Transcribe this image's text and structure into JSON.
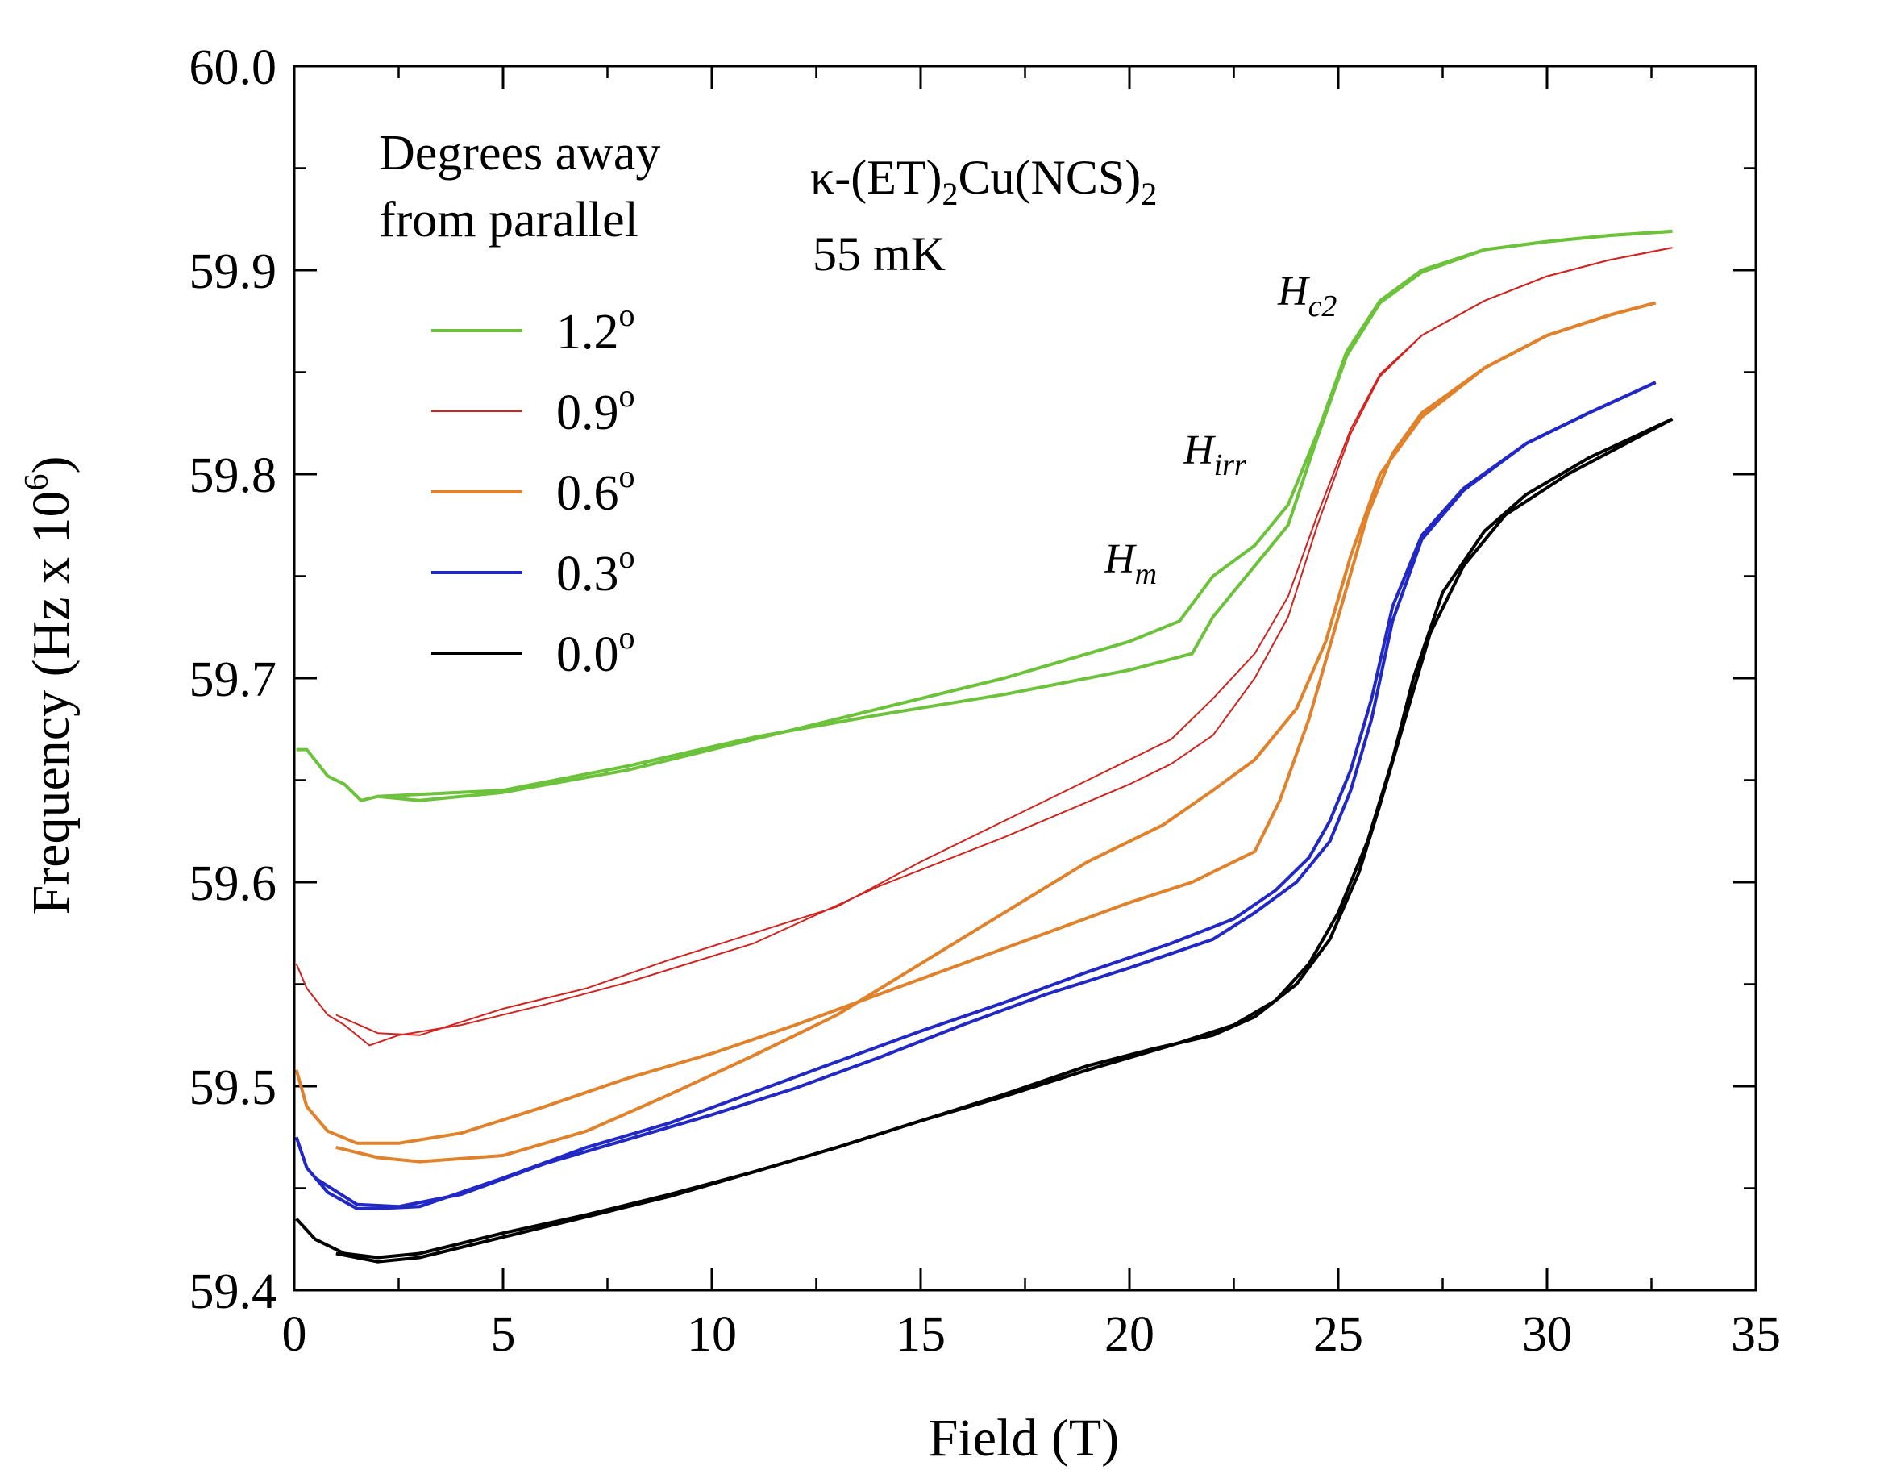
{
  "chart_data": {
    "type": "line",
    "xlabel": "Field (T)",
    "ylabel": "Frequency (Hz x 10",
    "ylabel_exp": "6",
    "ylabel_close": ")",
    "xlim": [
      0,
      35
    ],
    "ylim": [
      59.4,
      60.0
    ],
    "xticks": [
      0,
      5,
      10,
      15,
      20,
      25,
      30,
      35
    ],
    "xtick_labels": [
      "0",
      "5",
      "10",
      "15",
      "20",
      "25",
      "30",
      "35"
    ],
    "yticks": [
      59.4,
      59.5,
      59.6,
      59.7,
      59.8,
      59.9,
      60.0
    ],
    "ytick_labels": [
      "59.4",
      "59.5",
      "59.6",
      "59.7",
      "59.8",
      "59.9",
      "60.0"
    ],
    "grid": false,
    "legend": {
      "title_line1": "Degrees away",
      "title_line2": "from parallel",
      "placement": "top-left"
    },
    "annotations": {
      "compound_part1": "κ-(ET)",
      "compound_sub1": "2",
      "compound_part2": "Cu(NCS)",
      "compound_sub2": "2",
      "temperature": "55 mK",
      "hc2_main": "H",
      "hc2_sub": "c2",
      "hirr_main": "H",
      "hirr_sub": "irr",
      "hm_main": "H",
      "hm_sub": "m"
    },
    "series": [
      {
        "name": "1.2",
        "degree_sign": "o",
        "color": "#6cc23a",
        "up": [
          [
            0.05,
            59.665
          ],
          [
            0.3,
            59.665
          ],
          [
            0.8,
            59.652
          ],
          [
            1.2,
            59.648
          ],
          [
            1.6,
            59.64
          ],
          [
            2.0,
            59.642
          ],
          [
            3.0,
            59.64
          ],
          [
            5.0,
            59.644
          ],
          [
            8.0,
            59.655
          ],
          [
            11.0,
            59.67
          ],
          [
            14.0,
            59.685
          ],
          [
            17.0,
            59.7
          ],
          [
            20.0,
            59.718
          ],
          [
            21.2,
            59.728
          ],
          [
            22.0,
            59.75
          ],
          [
            23.0,
            59.765
          ],
          [
            23.8,
            59.785
          ],
          [
            24.5,
            59.82
          ],
          [
            25.2,
            59.86
          ],
          [
            26.0,
            59.885
          ],
          [
            27.0,
            59.9
          ],
          [
            28.5,
            59.91
          ],
          [
            30.0,
            59.914
          ],
          [
            31.5,
            59.917
          ],
          [
            33.0,
            59.919
          ]
        ],
        "down": [
          [
            2.0,
            59.642
          ],
          [
            5.0,
            59.645
          ],
          [
            8.0,
            59.657
          ],
          [
            11.0,
            59.671
          ],
          [
            14.0,
            59.682
          ],
          [
            17.0,
            59.692
          ],
          [
            20.0,
            59.704
          ],
          [
            21.5,
            59.712
          ],
          [
            22.0,
            59.73
          ],
          [
            23.0,
            59.755
          ],
          [
            23.8,
            59.775
          ],
          [
            24.5,
            59.818
          ],
          [
            25.2,
            59.858
          ],
          [
            26.0,
            59.884
          ],
          [
            27.0,
            59.899
          ],
          [
            28.5,
            59.91
          ],
          [
            30.0,
            59.914
          ],
          [
            31.5,
            59.917
          ],
          [
            33.0,
            59.919
          ]
        ]
      },
      {
        "name": "0.9",
        "degree_sign": "o",
        "color": "#cf2420",
        "up": [
          [
            0.05,
            59.56
          ],
          [
            0.3,
            59.548
          ],
          [
            0.8,
            59.535
          ],
          [
            1.2,
            59.53
          ],
          [
            1.8,
            59.52
          ],
          [
            2.5,
            59.525
          ],
          [
            4.0,
            59.53
          ],
          [
            6.0,
            59.54
          ],
          [
            8.0,
            59.551
          ],
          [
            11.0,
            59.57
          ],
          [
            14.0,
            59.598
          ],
          [
            17.0,
            59.622
          ],
          [
            20.0,
            59.648
          ],
          [
            21.0,
            59.658
          ],
          [
            22.0,
            59.672
          ],
          [
            23.0,
            59.7
          ],
          [
            23.8,
            59.73
          ],
          [
            24.5,
            59.775
          ],
          [
            25.3,
            59.82
          ],
          [
            26.0,
            59.848
          ],
          [
            27.0,
            59.868
          ],
          [
            28.5,
            59.885
          ],
          [
            30.0,
            59.897
          ],
          [
            31.5,
            59.905
          ],
          [
            33.0,
            59.911
          ]
        ],
        "down": [
          [
            1.0,
            59.535
          ],
          [
            2.0,
            59.526
          ],
          [
            3.0,
            59.525
          ],
          [
            5.0,
            59.538
          ],
          [
            7.0,
            59.548
          ],
          [
            9.0,
            59.562
          ],
          [
            11.0,
            59.575
          ],
          [
            13.0,
            59.588
          ],
          [
            15.0,
            59.61
          ],
          [
            17.0,
            59.63
          ],
          [
            19.0,
            59.65
          ],
          [
            21.0,
            59.67
          ],
          [
            22.0,
            59.69
          ],
          [
            23.0,
            59.712
          ],
          [
            23.8,
            59.74
          ],
          [
            24.5,
            59.78
          ],
          [
            25.3,
            59.822
          ],
          [
            26.0,
            59.849
          ],
          [
            27.0,
            59.868
          ],
          [
            28.5,
            59.885
          ],
          [
            30.0,
            59.897
          ],
          [
            31.5,
            59.905
          ],
          [
            33.0,
            59.911
          ]
        ]
      },
      {
        "name": "0.6",
        "degree_sign": "o",
        "color": "#e0822c",
        "up": [
          [
            0.05,
            59.508
          ],
          [
            0.3,
            59.49
          ],
          [
            0.8,
            59.478
          ],
          [
            1.5,
            59.472
          ],
          [
            2.5,
            59.472
          ],
          [
            4.0,
            59.477
          ],
          [
            6.0,
            59.49
          ],
          [
            8.0,
            59.504
          ],
          [
            10.0,
            59.516
          ],
          [
            12.0,
            59.53
          ],
          [
            14.0,
            59.545
          ],
          [
            16.0,
            59.56
          ],
          [
            18.0,
            59.575
          ],
          [
            20.0,
            59.59
          ],
          [
            21.5,
            59.6
          ],
          [
            23.0,
            59.615
          ],
          [
            23.6,
            59.64
          ],
          [
            24.3,
            59.68
          ],
          [
            25.0,
            59.73
          ],
          [
            25.7,
            59.78
          ],
          [
            26.3,
            59.81
          ],
          [
            27.0,
            59.83
          ],
          [
            28.5,
            59.852
          ],
          [
            30.0,
            59.868
          ],
          [
            31.5,
            59.878
          ],
          [
            32.6,
            59.884
          ]
        ],
        "down": [
          [
            1.0,
            59.47
          ],
          [
            2.0,
            59.465
          ],
          [
            3.0,
            59.463
          ],
          [
            5.0,
            59.466
          ],
          [
            7.0,
            59.478
          ],
          [
            9.0,
            59.496
          ],
          [
            11.0,
            59.515
          ],
          [
            13.0,
            59.535
          ],
          [
            15.0,
            59.56
          ],
          [
            17.0,
            59.585
          ],
          [
            19.0,
            59.61
          ],
          [
            20.8,
            59.628
          ],
          [
            22.0,
            59.645
          ],
          [
            23.0,
            59.66
          ],
          [
            24.0,
            59.685
          ],
          [
            24.7,
            59.718
          ],
          [
            25.3,
            59.76
          ],
          [
            26.0,
            59.8
          ],
          [
            27.0,
            59.828
          ],
          [
            28.5,
            59.852
          ],
          [
            30.0,
            59.868
          ],
          [
            31.5,
            59.878
          ],
          [
            32.6,
            59.884
          ]
        ]
      },
      {
        "name": "0.3",
        "degree_sign": "o",
        "color": "#2228c4",
        "up": [
          [
            0.05,
            59.475
          ],
          [
            0.3,
            59.46
          ],
          [
            0.8,
            59.448
          ],
          [
            1.5,
            59.44
          ],
          [
            2.0,
            59.44
          ],
          [
            3.0,
            59.441
          ],
          [
            5.0,
            59.455
          ],
          [
            7.0,
            59.47
          ],
          [
            9.0,
            59.482
          ],
          [
            11.0,
            59.497
          ],
          [
            13.0,
            59.512
          ],
          [
            15.0,
            59.527
          ],
          [
            17.0,
            59.541
          ],
          [
            19.0,
            59.556
          ],
          [
            21.0,
            59.57
          ],
          [
            22.5,
            59.582
          ],
          [
            23.5,
            59.596
          ],
          [
            24.3,
            59.612
          ],
          [
            24.8,
            59.63
          ],
          [
            25.3,
            59.655
          ],
          [
            25.8,
            59.69
          ],
          [
            26.3,
            59.735
          ],
          [
            27.0,
            59.77
          ],
          [
            28.0,
            59.793
          ],
          [
            29.5,
            59.815
          ],
          [
            31.0,
            59.83
          ],
          [
            32.6,
            59.845
          ]
        ],
        "down": [
          [
            0.5,
            59.455
          ],
          [
            1.5,
            59.442
          ],
          [
            2.5,
            59.441
          ],
          [
            4.0,
            59.447
          ],
          [
            6.0,
            59.462
          ],
          [
            8.0,
            59.474
          ],
          [
            10.0,
            59.486
          ],
          [
            12.0,
            59.499
          ],
          [
            14.0,
            59.514
          ],
          [
            16.0,
            59.53
          ],
          [
            18.0,
            59.545
          ],
          [
            20.0,
            59.558
          ],
          [
            22.0,
            59.572
          ],
          [
            23.0,
            59.585
          ],
          [
            24.0,
            59.6
          ],
          [
            24.8,
            59.62
          ],
          [
            25.3,
            59.645
          ],
          [
            25.8,
            59.68
          ],
          [
            26.3,
            59.728
          ],
          [
            27.0,
            59.768
          ],
          [
            28.0,
            59.792
          ],
          [
            29.5,
            59.815
          ],
          [
            31.0,
            59.83
          ],
          [
            32.6,
            59.845
          ]
        ]
      },
      {
        "name": "0.0",
        "degree_sign": "o",
        "color": "#000000",
        "up": [
          [
            0.05,
            59.435
          ],
          [
            0.5,
            59.425
          ],
          [
            1.2,
            59.418
          ],
          [
            2.0,
            59.416
          ],
          [
            3.0,
            59.418
          ],
          [
            5.0,
            59.428
          ],
          [
            7.0,
            59.437
          ],
          [
            9.0,
            59.447
          ],
          [
            11.0,
            59.458
          ],
          [
            13.0,
            59.47
          ],
          [
            15.0,
            59.483
          ],
          [
            17.0,
            59.495
          ],
          [
            19.0,
            59.508
          ],
          [
            21.0,
            59.52
          ],
          [
            22.5,
            59.53
          ],
          [
            23.5,
            59.542
          ],
          [
            24.3,
            59.56
          ],
          [
            25.0,
            59.585
          ],
          [
            25.7,
            59.62
          ],
          [
            26.3,
            59.66
          ],
          [
            26.8,
            59.7
          ],
          [
            27.5,
            59.742
          ],
          [
            28.5,
            59.772
          ],
          [
            29.5,
            59.79
          ],
          [
            31.0,
            59.808
          ],
          [
            33.0,
            59.827
          ]
        ],
        "down": [
          [
            1.0,
            59.418
          ],
          [
            2.0,
            59.414
          ],
          [
            3.0,
            59.416
          ],
          [
            5.0,
            59.426
          ],
          [
            7.0,
            59.436
          ],
          [
            9.0,
            59.446
          ],
          [
            11.0,
            59.458
          ],
          [
            13.0,
            59.47
          ],
          [
            15.0,
            59.483
          ],
          [
            17.0,
            59.496
          ],
          [
            19.0,
            59.51
          ],
          [
            20.5,
            59.518
          ],
          [
            22.0,
            59.525
          ],
          [
            23.0,
            59.534
          ],
          [
            24.0,
            59.55
          ],
          [
            24.8,
            59.572
          ],
          [
            25.5,
            59.605
          ],
          [
            26.0,
            59.638
          ],
          [
            26.6,
            59.68
          ],
          [
            27.2,
            59.722
          ],
          [
            28.0,
            59.755
          ],
          [
            29.0,
            59.78
          ],
          [
            30.5,
            59.8
          ],
          [
            33.0,
            59.827
          ]
        ]
      }
    ]
  }
}
